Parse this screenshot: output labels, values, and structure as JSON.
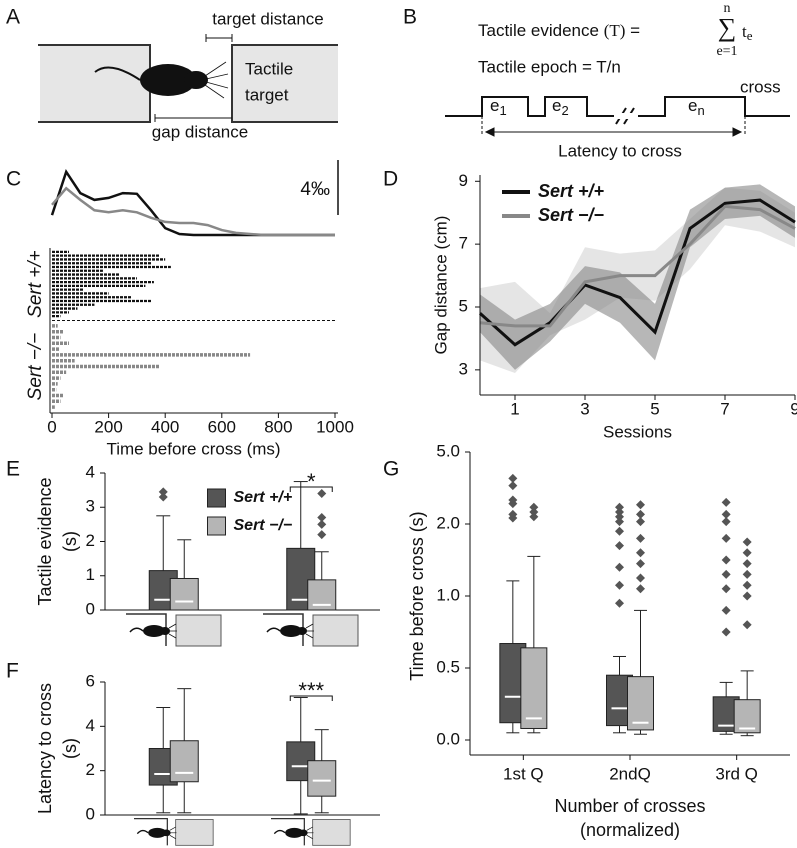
{
  "panel_labels": [
    "A",
    "B",
    "C",
    "D",
    "E",
    "F",
    "G"
  ],
  "diagram_a": {
    "target_distance": "target distance",
    "tactile_target": [
      "Tactile",
      "target"
    ],
    "gap_distance": "gap distance"
  },
  "diagram_b": {
    "evidence_lhs": "Tactile evidence",
    "evidence_t": "(T)",
    "equals": "=",
    "sum_upper": "n",
    "sum_symbol": "∑",
    "sum_lower": "e=1",
    "term": "t",
    "term_sub": "e",
    "epoch": "Tactile epoch = T/n",
    "epochs": [
      [
        "e",
        "1"
      ],
      [
        "e",
        "2"
      ],
      [
        "e",
        "n"
      ]
    ],
    "cross": "cross",
    "latency": "Latency to cross"
  },
  "chart_data": [
    {
      "type": "density-raster",
      "xlabel": "Time before cross (ms)",
      "xlim": [
        0,
        1000
      ],
      "xticks": [
        0,
        200,
        400,
        600,
        800,
        1000
      ],
      "x": [
        0,
        50,
        100,
        150,
        200,
        250,
        300,
        350,
        400,
        450,
        500,
        550,
        600,
        650,
        700,
        750,
        800,
        850,
        900,
        950,
        1000
      ],
      "scale_bar": {
        "value": 4,
        "label": "4‰"
      },
      "series": [
        {
          "name": "Sert +/+",
          "color": "#111111",
          "values": [
            1.45,
            4.6,
            3.05,
            2.55,
            2.7,
            3.05,
            3.0,
            1.8,
            0.5,
            0.07,
            0,
            0,
            0,
            0,
            0,
            0,
            0,
            0,
            0,
            0,
            0
          ],
          "raster_ends": [
            60,
            380,
            400,
            350,
            420,
            180,
            240,
            300,
            360,
            330,
            110,
            200,
            280,
            350,
            150,
            90,
            60,
            30
          ]
        },
        {
          "name": "Sert −/−",
          "color": "#888888",
          "values": [
            2.2,
            3.4,
            2.55,
            1.8,
            1.65,
            1.8,
            1.65,
            1.25,
            0.95,
            0.87,
            0.87,
            0.72,
            0.36,
            0.15,
            0.07,
            0,
            0,
            0,
            0,
            0,
            0
          ],
          "raster_ends": [
            20,
            40,
            30,
            60,
            25,
            700,
            80,
            380,
            50,
            30,
            20,
            15,
            40,
            30,
            10
          ]
        }
      ]
    },
    {
      "type": "line-band",
      "xlabel": "Sessions",
      "ylabel": "Gap distance (cm)",
      "x": [
        0,
        1,
        2,
        3,
        4,
        5,
        6,
        7,
        8,
        9
      ],
      "xlim": [
        0,
        9
      ],
      "xticks": [
        1,
        3,
        5,
        7,
        9
      ],
      "ylim": [
        2.2,
        9.2
      ],
      "yticks": [
        3,
        5,
        7,
        9
      ],
      "legend": "upper left",
      "series": [
        {
          "name": "Sert +/+",
          "color": "#111111",
          "values": [
            4.8,
            3.8,
            4.5,
            5.7,
            5.3,
            4.2,
            7.5,
            8.3,
            8.4,
            7.7
          ],
          "lower": [
            4.2,
            3.0,
            3.9,
            5.1,
            4.5,
            3.3,
            6.9,
            7.8,
            7.9,
            7.2
          ],
          "upper": [
            5.4,
            4.6,
            5.1,
            6.3,
            6.1,
            5.1,
            8.1,
            8.8,
            8.9,
            8.2
          ]
        },
        {
          "name": "Sert −/−",
          "color": "#888888",
          "values": [
            4.5,
            4.4,
            4.4,
            5.8,
            6.0,
            6.0,
            7.0,
            8.2,
            8.1,
            7.5
          ],
          "lower": [
            3.3,
            2.9,
            4.1,
            4.6,
            5.3,
            5.2,
            6.2,
            7.6,
            7.4,
            6.9
          ],
          "upper": [
            5.6,
            5.8,
            4.8,
            6.9,
            6.7,
            6.8,
            7.8,
            8.8,
            8.7,
            8.0
          ]
        }
      ]
    },
    {
      "type": "box",
      "ylabel": [
        "Tactile evidence",
        "(s)"
      ],
      "ylim": [
        0,
        4
      ],
      "yticks": [
        0,
        1,
        2,
        3,
        4
      ],
      "categories": [
        null,
        null
      ],
      "significance": [
        null,
        "*"
      ],
      "legend": "upper center",
      "series": [
        {
          "name": "Sert +/+",
          "color": "#555555",
          "boxes": [
            {
              "whislo": 0,
              "q1": 0,
              "med": 0.3,
              "q3": 1.15,
              "whishi": 2.75,
              "fliers": [
                3.3,
                3.45
              ]
            },
            {
              "whislo": 0,
              "q1": 0,
              "med": 0.3,
              "q3": 1.8,
              "whishi": 3.75,
              "fliers": []
            }
          ]
        },
        {
          "name": "Sert −/−",
          "color": "#b5b5b5",
          "boxes": [
            {
              "whislo": 0,
              "q1": 0,
              "med": 0.25,
              "q3": 0.92,
              "whishi": 2.05,
              "fliers": []
            },
            {
              "whislo": 0,
              "q1": 0,
              "med": 0.15,
              "q3": 0.88,
              "whishi": 1.7,
              "fliers": [
                2.2,
                2.5,
                2.7,
                3.4
              ]
            }
          ]
        }
      ]
    },
    {
      "type": "box",
      "ylabel": [
        "Latency to cross",
        "(s)"
      ],
      "ylim": [
        0,
        6
      ],
      "yticks": [
        0,
        2,
        4,
        6
      ],
      "categories": [
        null,
        null
      ],
      "significance": [
        null,
        "***"
      ],
      "series": [
        {
          "name": "Sert +/+",
          "color": "#555555",
          "boxes": [
            {
              "whislo": 0.1,
              "q1": 1.35,
              "med": 1.85,
              "q3": 3.0,
              "whishi": 4.85,
              "fliers": []
            },
            {
              "whislo": 0.05,
              "q1": 1.55,
              "med": 2.2,
              "q3": 3.3,
              "whishi": 5.3,
              "fliers": []
            }
          ]
        },
        {
          "name": "Sert −/−",
          "color": "#b5b5b5",
          "boxes": [
            {
              "whislo": 0.1,
              "q1": 1.5,
              "med": 1.9,
              "q3": 3.35,
              "whishi": 5.7,
              "fliers": []
            },
            {
              "whislo": 0.1,
              "q1": 0.85,
              "med": 1.55,
              "q3": 2.45,
              "whishi": 3.85,
              "fliers": []
            }
          ]
        }
      ]
    },
    {
      "type": "box",
      "ylabel": "Time before cross (s)",
      "xlabel": [
        "Number of crosses",
        "(normalized)"
      ],
      "categories": [
        "1st Q",
        "2ndQ",
        "3rd Q"
      ],
      "yscale": "tick-spaced",
      "ylim": [
        0,
        5
      ],
      "yticks": [
        {
          "value": 0,
          "label": "0.0"
        },
        0.5,
        {
          "value": 1,
          "label": "1.0"
        },
        {
          "value": 2,
          "label": "2.0"
        },
        {
          "value": 5,
          "label": "5.0"
        }
      ],
      "series": [
        {
          "name": "Sert +/+",
          "color": "#555555",
          "boxes": [
            {
              "whislo": 0.05,
              "q1": 0.12,
              "med": 0.3,
              "q3": 0.67,
              "whishi": 1.21,
              "fliers": [
                2.25,
                2.4,
                2.85,
                3.0,
                3.6,
                3.9
              ]
            },
            {
              "whislo": 0.05,
              "q1": 0.1,
              "med": 0.22,
              "q3": 0.45,
              "whishi": 0.58,
              "fliers": [
                0.95,
                1.15,
                1.4,
                1.7,
                1.9,
                2.1,
                2.3,
                2.5,
                2.7
              ]
            },
            {
              "whislo": 0.04,
              "q1": 0.06,
              "med": 0.1,
              "q3": 0.3,
              "whishi": 0.4,
              "fliers": [
                0.75,
                0.9,
                1.1,
                1.3,
                1.5,
                1.8,
                2.1,
                2.4,
                2.9
              ]
            }
          ]
        },
        {
          "name": "Sert −/−",
          "color": "#b5b5b5",
          "boxes": [
            {
              "whislo": 0.05,
              "q1": 0.08,
              "med": 0.15,
              "q3": 0.64,
              "whishi": 1.55,
              "fliers": [
                2.3,
                2.5,
                2.7
              ]
            },
            {
              "whislo": 0.04,
              "q1": 0.07,
              "med": 0.12,
              "q3": 0.44,
              "whishi": 0.9,
              "fliers": [
                1.1,
                1.25,
                1.45,
                1.6,
                1.8,
                2.1,
                2.4,
                2.8
              ]
            },
            {
              "whislo": 0.03,
              "q1": 0.05,
              "med": 0.08,
              "q3": 0.28,
              "whishi": 0.48,
              "fliers": [
                0.8,
                1.0,
                1.15,
                1.3,
                1.45,
                1.6,
                1.75
              ]
            }
          ]
        }
      ]
    }
  ]
}
